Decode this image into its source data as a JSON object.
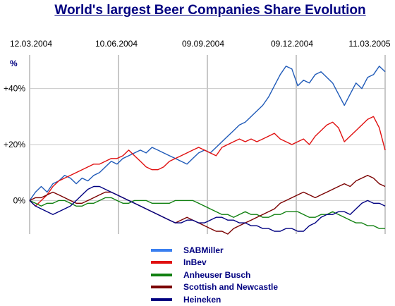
{
  "chart_data": {
    "type": "line",
    "title": "World's largest Beer Companies Share Evolution",
    "ylabel": "%",
    "ylim": [
      -12,
      52
    ],
    "y_ticks": [
      {
        "value": 0,
        "label": "0%"
      },
      {
        "value": 20,
        "label": "+20%"
      },
      {
        "value": 40,
        "label": "+40%"
      }
    ],
    "x_ticks": [
      "12.03.2004",
      "10.06.2004",
      "09.09.2004",
      "09.12.2004",
      "11.03.2005"
    ],
    "grid": true,
    "legend_position": "bottom",
    "series": [
      {
        "name": "SABMiller",
        "color": "#1f5ab8",
        "legend_color": "#3a7ff0",
        "values": [
          0,
          3,
          5,
          3,
          6,
          7,
          9,
          8,
          6,
          8,
          7,
          9,
          10,
          12,
          14,
          13,
          15,
          16,
          17,
          18,
          17,
          19,
          18,
          17,
          16,
          15,
          14,
          13,
          15,
          17,
          18,
          17,
          19,
          21,
          23,
          25,
          27,
          28,
          30,
          32,
          34,
          37,
          41,
          45,
          48,
          47,
          41,
          43,
          42,
          45,
          46,
          44,
          42,
          38,
          34,
          38,
          42,
          40,
          44,
          45,
          48,
          46
        ]
      },
      {
        "name": "InBev",
        "color": "#e01010",
        "legend_color": "#e01010",
        "values": [
          0,
          -2,
          0,
          2,
          5,
          7,
          8,
          9,
          10,
          11,
          12,
          13,
          13,
          14,
          15,
          15,
          16,
          18,
          16,
          14,
          12,
          11,
          11,
          12,
          14,
          15,
          16,
          17,
          18,
          19,
          18,
          17,
          16,
          19,
          20,
          21,
          22,
          21,
          22,
          21,
          22,
          23,
          24,
          22,
          21,
          20,
          21,
          22,
          20,
          23,
          25,
          27,
          28,
          26,
          21,
          23,
          25,
          27,
          29,
          30,
          26,
          18
        ]
      },
      {
        "name": "Anheuser Busch",
        "color": "#108010",
        "legend_color": "#108010",
        "values": [
          0,
          -1,
          -2,
          -1,
          -1,
          0,
          0,
          -1,
          -2,
          -2,
          -1,
          -1,
          0,
          1,
          1,
          0,
          -1,
          -1,
          0,
          0,
          0,
          -1,
          -1,
          -1,
          -1,
          0,
          0,
          0,
          0,
          -1,
          -2,
          -3,
          -4,
          -5,
          -5,
          -6,
          -5,
          -4,
          -5,
          -5,
          -6,
          -6,
          -5,
          -5,
          -4,
          -4,
          -4,
          -5,
          -6,
          -6,
          -5,
          -5,
          -4,
          -5,
          -6,
          -7,
          -8,
          -8,
          -9,
          -9,
          -10,
          -10
        ]
      },
      {
        "name": "Scottish and Newcastle",
        "color": "#7a0000",
        "legend_color": "#7a0000",
        "values": [
          0,
          1,
          1,
          2,
          3,
          2,
          1,
          0,
          -1,
          -1,
          0,
          1,
          2,
          3,
          3,
          2,
          1,
          0,
          -1,
          -2,
          -3,
          -4,
          -5,
          -6,
          -7,
          -8,
          -7,
          -6,
          -7,
          -8,
          -9,
          -10,
          -11,
          -11,
          -12,
          -10,
          -9,
          -8,
          -7,
          -6,
          -5,
          -4,
          -3,
          -1,
          0,
          1,
          2,
          3,
          2,
          1,
          2,
          3,
          4,
          5,
          6,
          5,
          7,
          8,
          9,
          8,
          6,
          5
        ]
      },
      {
        "name": "Heineken",
        "color": "#000080",
        "legend_color": "#000080",
        "values": [
          0,
          -2,
          -3,
          -4,
          -5,
          -4,
          -3,
          -2,
          0,
          2,
          4,
          5,
          5,
          4,
          3,
          2,
          1,
          0,
          -1,
          -2,
          -3,
          -4,
          -5,
          -6,
          -7,
          -8,
          -8,
          -7,
          -7,
          -8,
          -8,
          -7,
          -6,
          -6,
          -7,
          -7,
          -8,
          -8,
          -9,
          -9,
          -10,
          -10,
          -11,
          -11,
          -10,
          -10,
          -11,
          -11,
          -9,
          -8,
          -6,
          -5,
          -5,
          -4,
          -4,
          -5,
          -3,
          -1,
          0,
          -1,
          -1,
          -2
        ]
      }
    ]
  }
}
